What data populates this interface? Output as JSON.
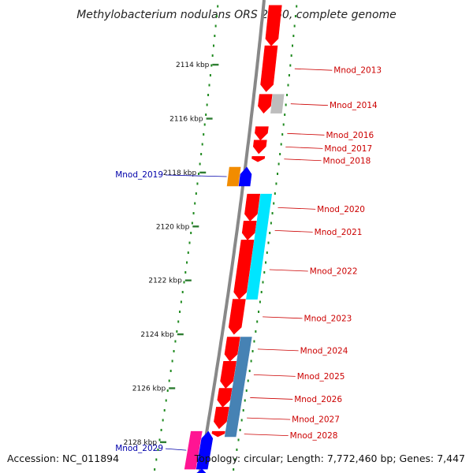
{
  "title": "Methylobacterium nodulans ORS 2060, complete genome",
  "accession": "Accession: NC_011894",
  "summary": "Topology: circular; Length: 7,772,460 bp; Genes: 7,447",
  "colors": {
    "backbone": "#888888",
    "tick": "#2e7d32",
    "dots": "#1f8a1f",
    "label_red": "#cc0000",
    "label_blue": "#0000aa",
    "gene_red": "#ff0000",
    "gene_cyan": "#00e5ff",
    "gene_steel": "#4682b4",
    "gene_grey": "#bdbdbd",
    "gene_orange": "#f28c00",
    "gene_blue": "#0000ff",
    "gene_magenta": "#ff1493"
  },
  "ticks": [
    {
      "kbp": 2114,
      "label": "2114 kbp"
    },
    {
      "kbp": 2116,
      "label": "2116 kbp"
    },
    {
      "kbp": 2118,
      "label": "2118 kbp"
    },
    {
      "kbp": 2120,
      "label": "2120 kbp"
    },
    {
      "kbp": 2122,
      "label": "2122 kbp"
    },
    {
      "kbp": 2124,
      "label": "2124 kbp"
    },
    {
      "kbp": 2126,
      "label": "2126 kbp"
    },
    {
      "kbp": 2128,
      "label": "2128 kbp"
    }
  ],
  "genes": [
    {
      "name": "",
      "track": "plus_outer",
      "start": 2111.8,
      "end": 2113.3,
      "color": "gene_red",
      "dir": "down"
    },
    {
      "name": "Mnod_2013",
      "track": "plus_outer",
      "start": 2113.3,
      "end": 2115.0,
      "color": "gene_red",
      "dir": "down"
    },
    {
      "name": "",
      "track": "plus_outer",
      "start": 2115.1,
      "end": 2115.8,
      "color": "gene_red",
      "dir": "down"
    },
    {
      "name": "Mnod_2014",
      "track": "plus_mid",
      "start": 2115.1,
      "end": 2115.8,
      "color": "gene_grey",
      "dir": "none"
    },
    {
      "name": "Mnod_2016",
      "track": "plus_outer",
      "start": 2116.3,
      "end": 2116.8,
      "color": "gene_red",
      "dir": "down"
    },
    {
      "name": "Mnod_2017",
      "track": "plus_outer",
      "start": 2116.8,
      "end": 2117.3,
      "color": "gene_red",
      "dir": "down"
    },
    {
      "name": "Mnod_2018",
      "track": "plus_outer",
      "start": 2117.4,
      "end": 2117.6,
      "color": "gene_red",
      "dir": "down"
    },
    {
      "name": "Mnod_2019",
      "track": "minus",
      "start": 2117.8,
      "end": 2118.5,
      "color": "gene_orange",
      "dir": "none"
    },
    {
      "name": "",
      "track": "minus_inner",
      "start": 2117.8,
      "end": 2118.5,
      "color": "gene_blue",
      "dir": "up"
    },
    {
      "name": "Mnod_2020",
      "track": "plus_outer",
      "start": 2118.8,
      "end": 2119.8,
      "color": "gene_red",
      "dir": "down"
    },
    {
      "name": "Mnod_2021",
      "track": "plus_outer",
      "start": 2119.8,
      "end": 2120.5,
      "color": "gene_red",
      "dir": "down"
    },
    {
      "name": "",
      "track": "plus_mid",
      "start": 2118.8,
      "end": 2122.7,
      "color": "gene_cyan",
      "dir": "none"
    },
    {
      "name": "Mnod_2022",
      "track": "plus_outer",
      "start": 2120.5,
      "end": 2122.7,
      "color": "gene_red",
      "dir": "down"
    },
    {
      "name": "Mnod_2023",
      "track": "plus_outer",
      "start": 2122.7,
      "end": 2124.0,
      "color": "gene_red",
      "dir": "down"
    },
    {
      "name": "Mnod_2024",
      "track": "plus_outer",
      "start": 2124.1,
      "end": 2125.0,
      "color": "gene_red",
      "dir": "down"
    },
    {
      "name": "",
      "track": "plus_mid",
      "start": 2124.1,
      "end": 2127.8,
      "color": "gene_steel",
      "dir": "none"
    },
    {
      "name": "Mnod_2025",
      "track": "plus_outer",
      "start": 2125.0,
      "end": 2126.0,
      "color": "gene_red",
      "dir": "down"
    },
    {
      "name": "Mnod_2026",
      "track": "plus_outer",
      "start": 2126.0,
      "end": 2126.7,
      "color": "gene_red",
      "dir": "down"
    },
    {
      "name": "Mnod_2027",
      "track": "plus_outer",
      "start": 2126.7,
      "end": 2127.5,
      "color": "gene_red",
      "dir": "down"
    },
    {
      "name": "Mnod_2028",
      "track": "plus_outer",
      "start": 2127.6,
      "end": 2127.8,
      "color": "gene_red",
      "dir": "down"
    },
    {
      "name": "Mnod_2029",
      "track": "minus",
      "start": 2127.6,
      "end": 2129.0,
      "color": "gene_magenta",
      "dir": "none"
    },
    {
      "name": "",
      "track": "minus_inner",
      "start": 2127.6,
      "end": 2129.0,
      "color": "gene_blue",
      "dir": "up"
    },
    {
      "name": "",
      "track": "minus_inner",
      "start": 2129.0,
      "end": 2129.3,
      "color": "gene_blue",
      "dir": "up"
    }
  ]
}
